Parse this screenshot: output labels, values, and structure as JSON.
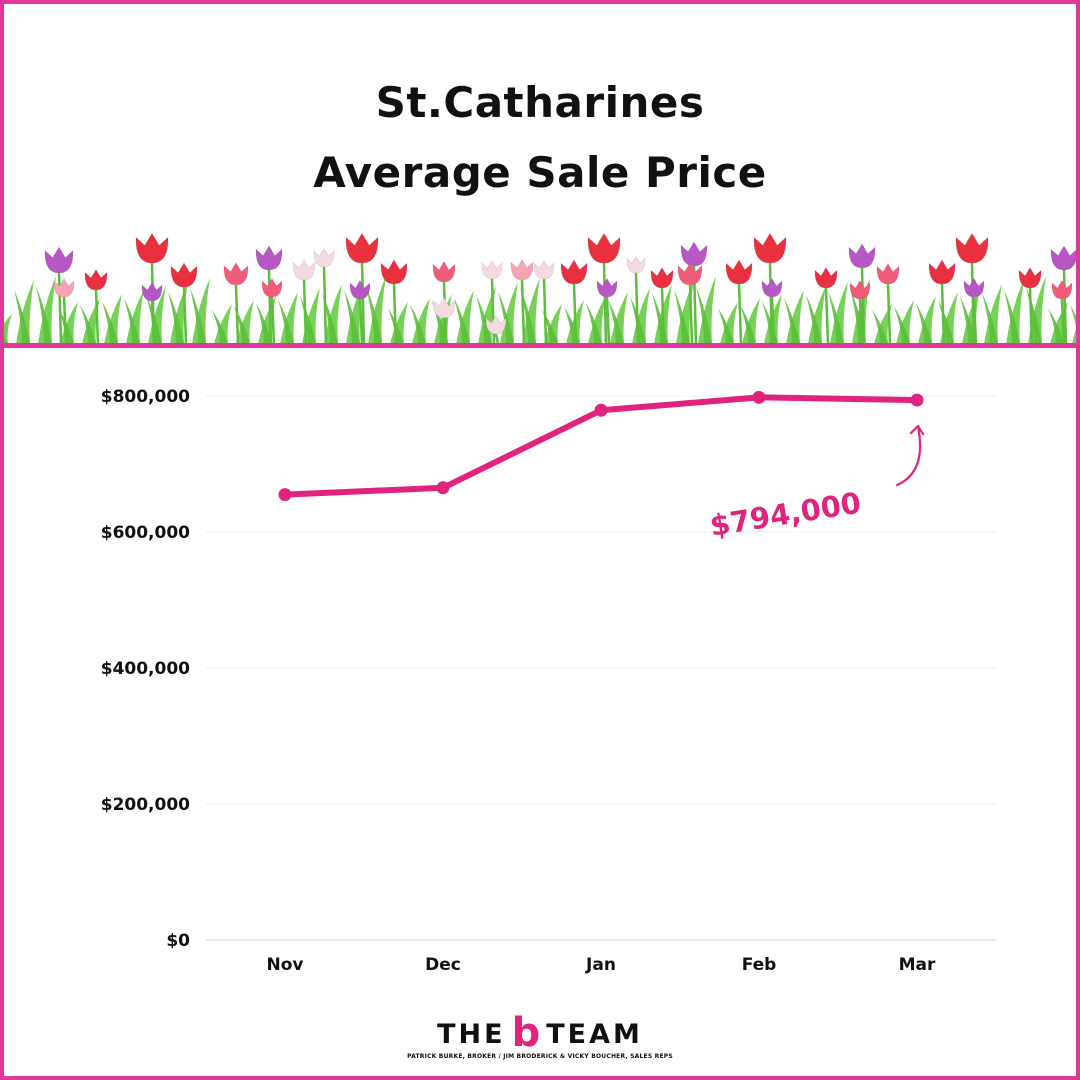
{
  "title": {
    "line1": "St.Catharines",
    "line2": "Average Sale Price"
  },
  "annotation": {
    "label": "$794,000",
    "target_month": "Mar"
  },
  "chart_data": {
    "type": "line",
    "title": "St.Catharines Average Sale Price",
    "categories": [
      "Nov",
      "Dec",
      "Jan",
      "Feb",
      "Mar"
    ],
    "series": [
      {
        "values": [
          655000,
          665000,
          779000,
          798000,
          794000
        ]
      }
    ],
    "ylim": [
      0,
      800000
    ],
    "yticks": [
      0,
      200000,
      400000,
      600000,
      800000
    ],
    "ytick_labels": [
      "$0",
      "$200,000",
      "$400,000",
      "$600,000",
      "$800,000"
    ],
    "xlabel": "",
    "ylabel": "",
    "grid": true,
    "line_color": "#e0237f"
  },
  "logo": {
    "main_left": "THE",
    "main_b": "b",
    "main_right": "TEAM",
    "sub": "PATRICK BURKE, BROKER / JIM BRODERICK & VICKY BOUCHER, SALES REPS"
  },
  "decoration": {
    "border_color": "#e0389a",
    "tulip_colors": [
      "#e8303e",
      "#f05c7a",
      "#b657c4",
      "#f5a3b5",
      "#f3d9e0"
    ]
  }
}
